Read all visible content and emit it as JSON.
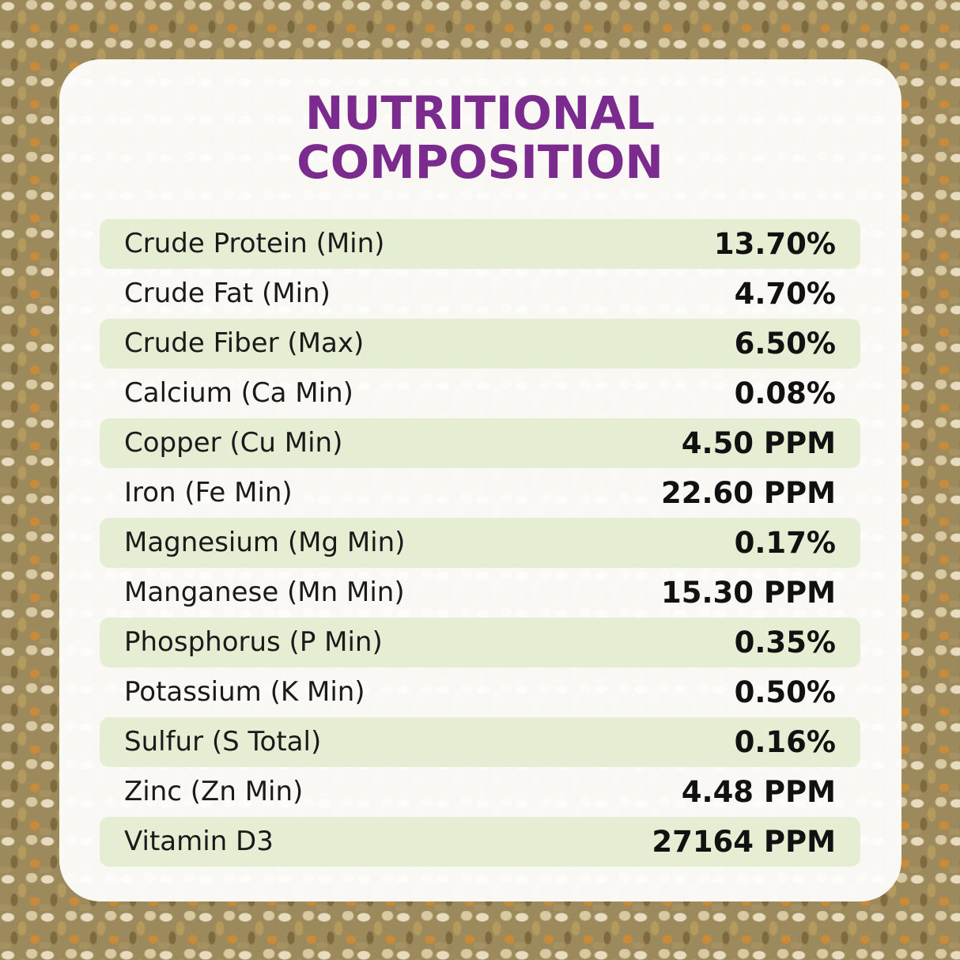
{
  "header": {
    "title": "NUTRITIONAL COMPOSITION"
  },
  "table": {
    "rows": [
      [
        "Crude Protein (Min)",
        "13.70%"
      ],
      [
        "Crude Fat (Min)",
        "4.70%"
      ],
      [
        "Crude Fiber (Max)",
        "6.50%"
      ],
      [
        "Calcium (Ca Min)",
        "0.08%"
      ],
      [
        "Copper (Cu Min)",
        "4.50 PPM"
      ],
      [
        "Iron (Fe Min)",
        "22.60 PPM"
      ],
      [
        "Magnesium (Mg Min)",
        "0.17%"
      ],
      [
        "Manganese (Mn Min)",
        "15.30 PPM"
      ],
      [
        "Phosphorus (P Min)",
        "0.35%"
      ],
      [
        "Potassium (K Min)",
        "0.50%"
      ],
      [
        "Sulfur (S Total)",
        "0.16%"
      ],
      [
        "Zinc (Zn Min)",
        "4.48 PPM"
      ],
      [
        "Vitamin D3",
        "27164 PPM"
      ]
    ]
  }
}
